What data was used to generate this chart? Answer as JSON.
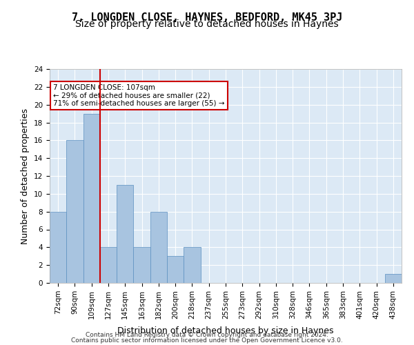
{
  "title1": "7, LONGDEN CLOSE, HAYNES, BEDFORD, MK45 3PJ",
  "title2": "Size of property relative to detached houses in Haynes",
  "xlabel": "Distribution of detached houses by size in Haynes",
  "ylabel": "Number of detached properties",
  "footer1": "Contains HM Land Registry data © Crown copyright and database right 2024.",
  "footer2": "Contains public sector information licensed under the Open Government Licence v3.0.",
  "categories": [
    "72sqm",
    "90sqm",
    "109sqm",
    "127sqm",
    "145sqm",
    "163sqm",
    "182sqm",
    "200sqm",
    "218sqm",
    "237sqm",
    "255sqm",
    "273sqm",
    "292sqm",
    "310sqm",
    "328sqm",
    "346sqm",
    "365sqm",
    "383sqm",
    "401sqm",
    "420sqm",
    "438sqm"
  ],
  "values": [
    8,
    16,
    19,
    4,
    11,
    4,
    8,
    3,
    4,
    0,
    0,
    0,
    0,
    0,
    0,
    0,
    0,
    0,
    0,
    0,
    1
  ],
  "bar_color": "#a8c4e0",
  "bar_edge_color": "#5a8fc0",
  "redline_index": 2,
  "annotation_text": "7 LONGDEN CLOSE: 107sqm\n← 29% of detached houses are smaller (22)\n71% of semi-detached houses are larger (55) →",
  "annotation_box_color": "#ffffff",
  "annotation_box_edge": "#cc0000",
  "redline_color": "#cc0000",
  "ylim": [
    0,
    24
  ],
  "yticks": [
    0,
    2,
    4,
    6,
    8,
    10,
    12,
    14,
    16,
    18,
    20,
    22,
    24
  ],
  "background_color": "#dce9f5",
  "grid_color": "#ffffff",
  "title1_fontsize": 11,
  "title2_fontsize": 10,
  "xlabel_fontsize": 9,
  "ylabel_fontsize": 9,
  "tick_fontsize": 7.5
}
